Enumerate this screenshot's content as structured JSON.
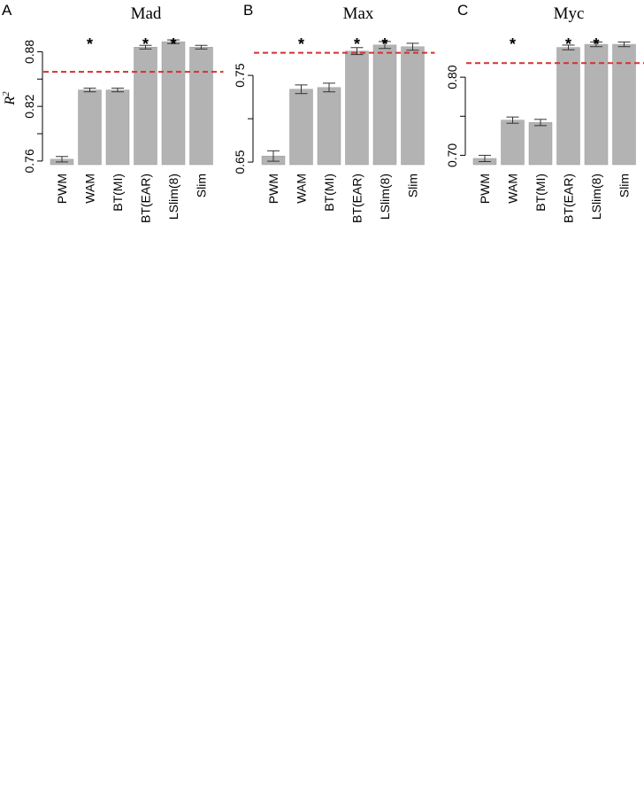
{
  "figure": {
    "ylabel": "R",
    "ylabel_superscript": "2"
  },
  "chart_data": [
    {
      "type": "bar",
      "panel": "A",
      "title": "Mad",
      "categories": [
        "PWM",
        "WAM",
        "BT(MI)",
        "BT(EAR)",
        "LSlim(8)",
        "Slim"
      ],
      "values": [
        0.762,
        0.838,
        0.838,
        0.885,
        0.891,
        0.885
      ],
      "errors": [
        0.003,
        0.002,
        0.002,
        0.002,
        0.002,
        0.002
      ],
      "significant": [
        false,
        true,
        false,
        true,
        true,
        false
      ],
      "reference_line": 0.858,
      "ylim": [
        0.756,
        0.895
      ],
      "yticks": [
        0.76,
        0.82,
        0.88
      ],
      "ytick_labels": [
        "0.76",
        "0.82",
        "0.88"
      ],
      "ylabel": "R²",
      "colors": {
        "bar": "#b3b3b3",
        "reference_line": "#d43030"
      }
    },
    {
      "type": "bar",
      "panel": "B",
      "title": "Max",
      "categories": [
        "PWM",
        "WAM",
        "BT(MI)",
        "BT(EAR)",
        "LSlim(8)",
        "Slim"
      ],
      "values": [
        0.657,
        0.734,
        0.736,
        0.778,
        0.785,
        0.783
      ],
      "errors": [
        0.006,
        0.005,
        0.005,
        0.004,
        0.004,
        0.004
      ],
      "significant": [
        false,
        true,
        false,
        true,
        true,
        false
      ],
      "reference_line": 0.776,
      "ylim": [
        0.647,
        0.793
      ],
      "yticks": [
        0.65,
        0.75
      ],
      "ytick_labels": [
        "0.65",
        "0.75"
      ],
      "colors": {
        "bar": "#b3b3b3",
        "reference_line": "#d43030"
      }
    },
    {
      "type": "bar",
      "panel": "C",
      "title": "Myc",
      "categories": [
        "PWM",
        "WAM",
        "BT(MI)",
        "BT(EAR)",
        "LSlim(8)",
        "Slim"
      ],
      "values": [
        0.696,
        0.745,
        0.742,
        0.838,
        0.842,
        0.842
      ],
      "errors": [
        0.004,
        0.004,
        0.004,
        0.003,
        0.003,
        0.003
      ],
      "significant": [
        false,
        true,
        false,
        true,
        true,
        false
      ],
      "reference_line": 0.818,
      "ylim": [
        0.688,
        0.85
      ],
      "yticks": [
        0.7,
        0.8
      ],
      "ytick_labels": [
        "0.70",
        "0.80"
      ],
      "colors": {
        "bar": "#b3b3b3",
        "reference_line": "#d43030"
      }
    }
  ]
}
